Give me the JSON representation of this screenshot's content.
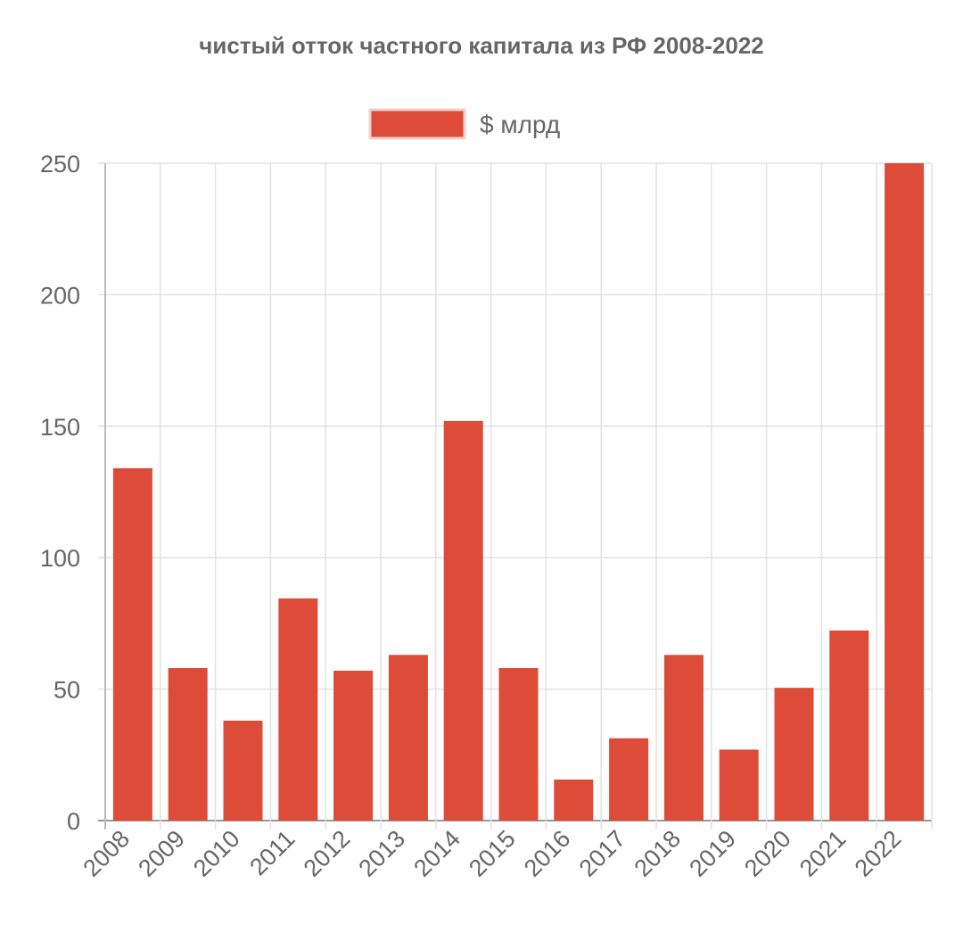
{
  "chart_data": {
    "type": "bar",
    "title": "чистый отток частного капитала из РФ 2008-2022",
    "legend": {
      "position": "top",
      "entries": [
        {
          "label": "$ млрд",
          "color": "#dd4b39"
        }
      ]
    },
    "categories": [
      "2008",
      "2009",
      "2010",
      "2011",
      "2012",
      "2013",
      "2014",
      "2015",
      "2016",
      "2017",
      "2018",
      "2019",
      "2020",
      "2021",
      "2022"
    ],
    "series": [
      {
        "name": "$ млрд",
        "color": "#dd4b39",
        "values": [
          134,
          58,
          38,
          84.5,
          57,
          63,
          152,
          58,
          15.6,
          31.3,
          63,
          27,
          50.5,
          72.3,
          250
        ]
      }
    ],
    "xlabel": "",
    "ylabel": "",
    "ylim": [
      0,
      250
    ],
    "yticks": [
      0,
      50,
      100,
      150,
      200,
      250
    ],
    "grid": true
  }
}
